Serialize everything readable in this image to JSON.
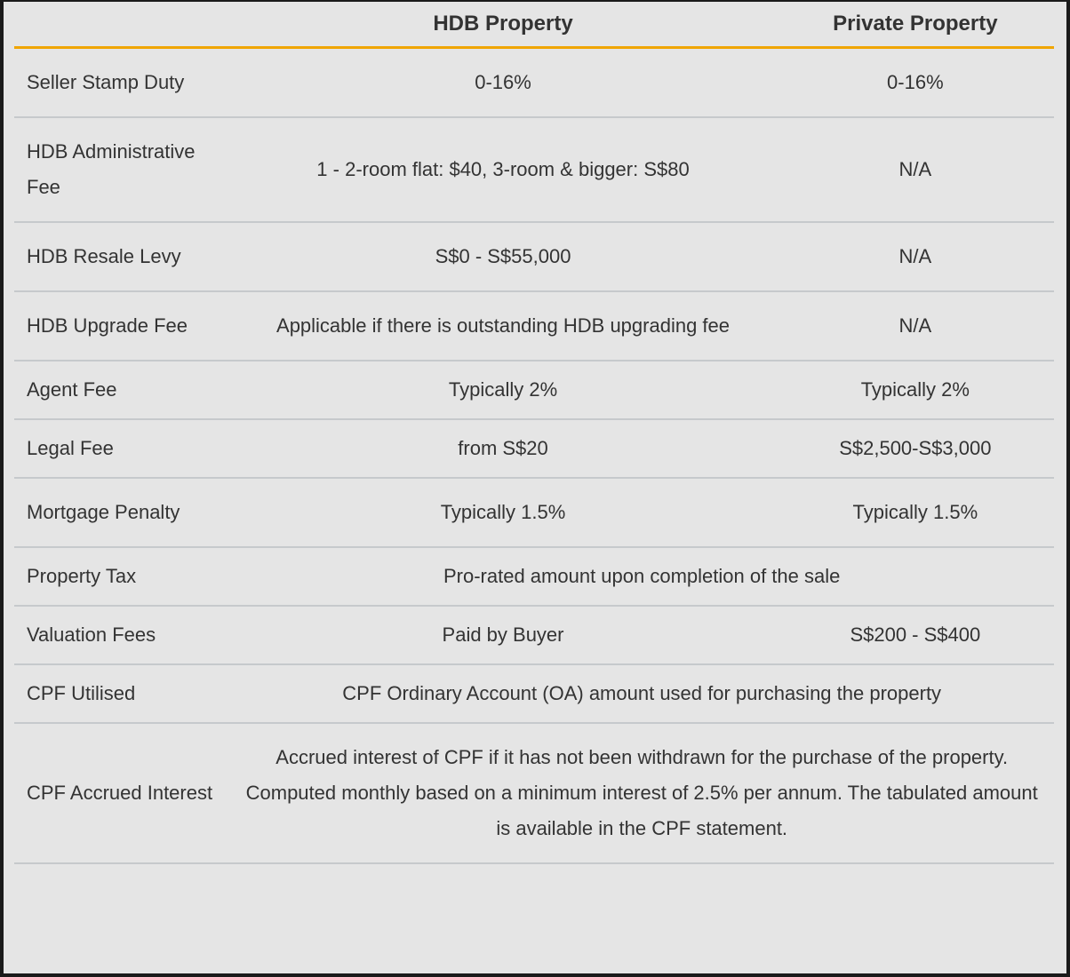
{
  "table": {
    "headers": [
      "",
      "HDB Property",
      "Private Property"
    ],
    "accent_color": "#f0a500",
    "rows": [
      {
        "label": "Seller Stamp Duty",
        "hdb": "0-16%",
        "private": "0-16%"
      },
      {
        "label": "HDB Administrative Fee",
        "hdb": "1 - 2-room flat: $40, 3-room & bigger: S$80",
        "private": "N/A"
      },
      {
        "label": "HDB Resale Levy",
        "hdb": "S$0 - S$55,000",
        "private": "N/A"
      },
      {
        "label": "HDB Upgrade Fee",
        "hdb": "Applicable if there is outstanding HDB upgrading fee",
        "private": "N/A"
      },
      {
        "label": "Agent Fee",
        "hdb": "Typically 2%",
        "private": "Typically 2%"
      },
      {
        "label": "Legal Fee",
        "hdb": "from S$20",
        "private": "S$2,500-S$3,000"
      },
      {
        "label": "Mortgage Penalty",
        "hdb": "Typically 1.5%",
        "private": "Typically 1.5%"
      },
      {
        "label": "Property Tax",
        "span": "Pro-rated amount upon completion of the sale"
      },
      {
        "label": "Valuation Fees",
        "hdb": "Paid by Buyer",
        "private": "S$200 - S$400"
      },
      {
        "label": "CPF Utilised",
        "span": "CPF Ordinary Account (OA) amount used for purchasing the property"
      },
      {
        "label": "CPF Accrued Interest",
        "span": "Accrued interest of CPF if it has not been withdrawn for the purchase of the property. Computed monthly based on a minimum interest of 2.5% per annum. The tabulated amount is available in the CPF statement."
      }
    ]
  }
}
